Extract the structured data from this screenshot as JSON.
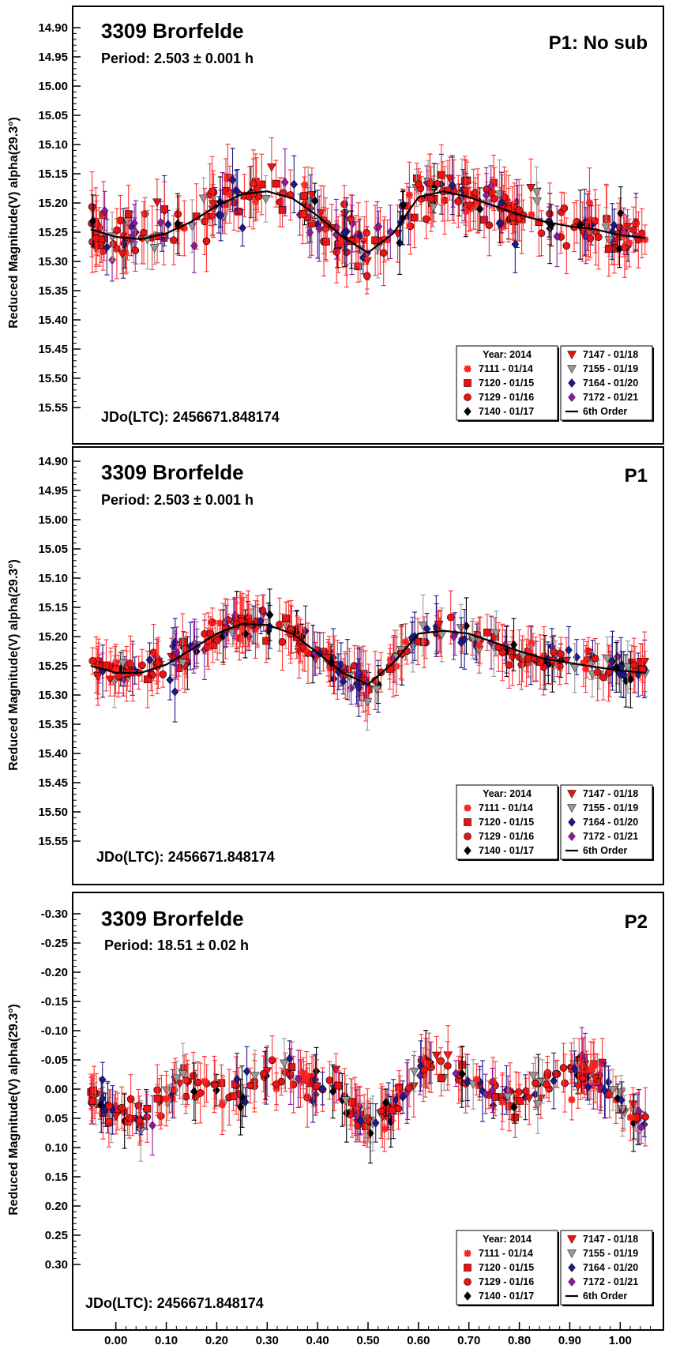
{
  "chart_data": [
    {
      "type": "scatter",
      "title": "3309 Brorfelde",
      "subtitle": "Period: 2.503 ± 0.001 h",
      "tag": "P1: No sub",
      "epoch": "JDo(LTC): 2456671.848174",
      "ylabel": "Reduced Magnitude(V) alpha(29.3°)",
      "xlabel": "",
      "xlim": [
        -0.07,
        1.07
      ],
      "ylim": [
        15.6,
        14.87
      ],
      "y_inverted": true,
      "yticks": [
        "14.90",
        "14.95",
        "15.00",
        "15.05",
        "15.10",
        "15.15",
        "15.20",
        "15.25",
        "15.30",
        "15.35",
        "15.40",
        "15.45",
        "15.50",
        "15.55"
      ],
      "grid": false,
      "legend_position": "bottom-right",
      "fit_curve": {
        "label": "6th Order",
        "x": [
          -0.05,
          0.0,
          0.05,
          0.1,
          0.15,
          0.2,
          0.25,
          0.3,
          0.35,
          0.4,
          0.45,
          0.5,
          0.55,
          0.6,
          0.65,
          0.7,
          0.75,
          0.8,
          0.85,
          0.9,
          0.95,
          1.0,
          1.05
        ],
        "y": [
          15.245,
          15.258,
          15.262,
          15.252,
          15.232,
          15.205,
          15.185,
          15.18,
          15.192,
          15.222,
          15.258,
          15.285,
          15.252,
          15.19,
          15.18,
          15.19,
          15.205,
          15.22,
          15.232,
          15.24,
          15.245,
          15.255,
          15.26
        ]
      },
      "data_profile": {
        "x": [
          -0.05,
          0.0,
          0.05,
          0.1,
          0.15,
          0.2,
          0.25,
          0.3,
          0.35,
          0.4,
          0.45,
          0.5,
          0.55,
          0.6,
          0.65,
          0.7,
          0.75,
          0.8,
          0.85,
          0.9,
          0.95,
          1.0,
          1.05
        ],
        "y": [
          15.245,
          15.258,
          15.262,
          15.252,
          15.232,
          15.205,
          15.185,
          15.18,
          15.192,
          15.222,
          15.258,
          15.285,
          15.252,
          15.19,
          15.18,
          15.19,
          15.205,
          15.22,
          15.232,
          15.24,
          15.245,
          15.255,
          15.26
        ],
        "scatter": 0.035,
        "errbar": 0.04,
        "n_points": 330
      }
    },
    {
      "type": "scatter",
      "title": "3309 Brorfelde",
      "subtitle": "Period: 2.503 ± 0.001 h",
      "tag": "P1",
      "epoch": "JDo(LTC): 2456671.848174",
      "ylabel": "Reduced Magnitude(V) alpha(29.3°)",
      "xlabel": "",
      "xlim": [
        -0.07,
        1.07
      ],
      "ylim": [
        15.6,
        14.87
      ],
      "y_inverted": true,
      "yticks": [
        "14.90",
        "14.95",
        "15.00",
        "15.05",
        "15.10",
        "15.15",
        "15.20",
        "15.25",
        "15.30",
        "15.35",
        "15.40",
        "15.45",
        "15.50",
        "15.55"
      ],
      "grid": false,
      "legend_position": "bottom-right",
      "fit_curve": {
        "label": "6th Order",
        "x": [
          -0.05,
          0.0,
          0.05,
          0.1,
          0.15,
          0.2,
          0.25,
          0.3,
          0.35,
          0.4,
          0.45,
          0.5,
          0.55,
          0.6,
          0.65,
          0.7,
          0.75,
          0.8,
          0.85,
          0.9,
          0.95,
          1.0,
          1.05
        ],
        "y": [
          15.25,
          15.262,
          15.262,
          15.248,
          15.222,
          15.195,
          15.178,
          15.18,
          15.195,
          15.228,
          15.262,
          15.282,
          15.245,
          15.195,
          15.19,
          15.195,
          15.21,
          15.225,
          15.238,
          15.245,
          15.252,
          15.258,
          15.262
        ]
      },
      "data_profile": {
        "x": [
          -0.05,
          0.0,
          0.05,
          0.1,
          0.15,
          0.2,
          0.25,
          0.3,
          0.35,
          0.4,
          0.45,
          0.5,
          0.55,
          0.6,
          0.65,
          0.7,
          0.75,
          0.8,
          0.85,
          0.9,
          0.95,
          1.0,
          1.05
        ],
        "y": [
          15.25,
          15.262,
          15.262,
          15.248,
          15.222,
          15.195,
          15.178,
          15.18,
          15.195,
          15.228,
          15.262,
          15.282,
          15.245,
          15.195,
          15.19,
          15.195,
          15.21,
          15.225,
          15.238,
          15.245,
          15.252,
          15.258,
          15.262
        ],
        "scatter": 0.022,
        "errbar": 0.035,
        "n_points": 330
      }
    },
    {
      "type": "scatter",
      "title": "3309 Brorfelde",
      "subtitle": "Period: 18.51 ± 0.02 h",
      "tag": "P2",
      "epoch": "JDo(LTC): 2456671.848174",
      "ylabel": "Reduced Magnitude(V) alpha(29.3°)",
      "xlabel": "",
      "xlim": [
        -0.07,
        1.07
      ],
      "ylim": [
        0.36,
        -0.36
      ],
      "y_inverted": true,
      "yticks": [
        "-0.30",
        "-0.25",
        "-0.20",
        "-0.15",
        "-0.10",
        "-0.05",
        "0.00",
        "0.05",
        "0.10",
        "0.15",
        "0.20",
        "0.25",
        "0.30"
      ],
      "xticks": [
        "0.00",
        "0.10",
        "0.20",
        "0.30",
        "0.40",
        "0.50",
        "0.60",
        "0.70",
        "0.80",
        "0.90",
        "1.00"
      ],
      "grid": false,
      "legend_position": "bottom-right",
      "data_profile": {
        "x": [
          -0.05,
          0.0,
          0.05,
          0.1,
          0.15,
          0.2,
          0.25,
          0.3,
          0.35,
          0.4,
          0.45,
          0.5,
          0.55,
          0.6,
          0.65,
          0.7,
          0.75,
          0.8,
          0.85,
          0.9,
          0.95,
          1.0,
          1.05
        ],
        "y": [
          0.0,
          0.04,
          0.06,
          0.01,
          -0.02,
          0.0,
          0.01,
          -0.03,
          -0.03,
          -0.01,
          0.01,
          0.06,
          0.03,
          -0.03,
          -0.04,
          -0.02,
          0.01,
          0.02,
          -0.01,
          -0.03,
          -0.02,
          0.03,
          0.06
        ],
        "scatter": 0.025,
        "errbar": 0.035,
        "n_points": 330
      }
    }
  ],
  "legend": {
    "header": "Year: 2014",
    "left": [
      {
        "label": "7111 - 01/14",
        "marker": "asterisk",
        "color": "#ff2020"
      },
      {
        "label": "7120 - 01/15",
        "marker": "square",
        "color": "#ee1111"
      },
      {
        "label": "7129 - 01/16",
        "marker": "circle",
        "color": "#ee1111"
      },
      {
        "label": "7140 - 01/17",
        "marker": "diamond",
        "color": "#000000"
      }
    ],
    "right": [
      {
        "label": "7147 - 01/18",
        "marker": "triangle-down",
        "color": "#ee1111"
      },
      {
        "label": "7155 - 01/19",
        "marker": "triangle-down",
        "color": "#999999"
      },
      {
        "label": "7164 - 01/20",
        "marker": "diamond",
        "color": "#1a1a8c"
      },
      {
        "label": "7172 - 01/21",
        "marker": "diamond",
        "color": "#8b1a9a"
      },
      {
        "label": "6th Order",
        "marker": "line",
        "color": "#000000"
      }
    ]
  },
  "series_colors": {
    "red": "#ee1111",
    "gray": "#999999",
    "navy": "#1a1a8c",
    "purple": "#8b1a9a",
    "black": "#000000",
    "errbar_red": "#ff3333"
  }
}
